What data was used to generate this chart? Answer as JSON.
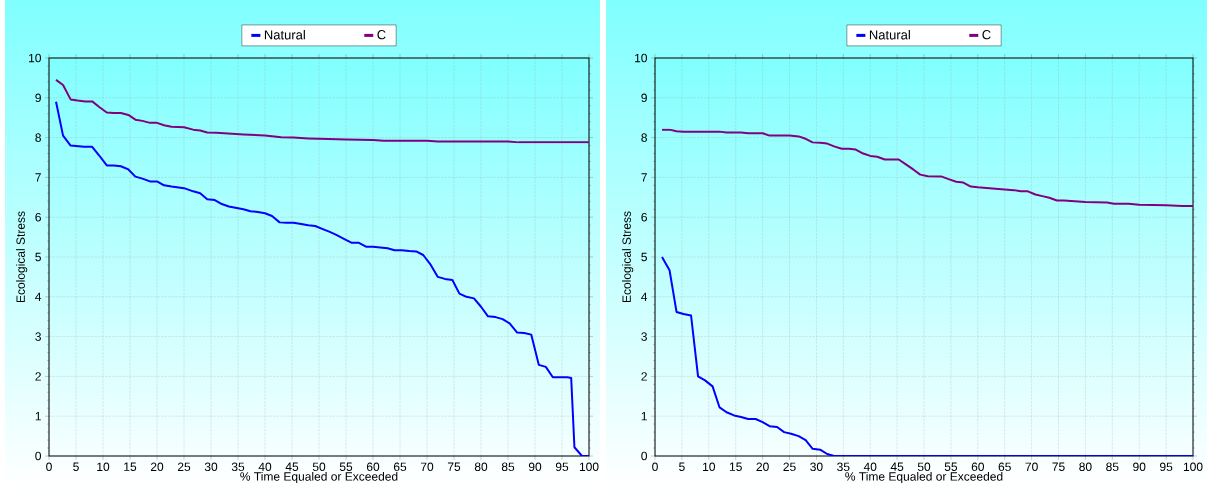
{
  "chart_data": [
    {
      "type": "line",
      "xlabel": "% Time Equaled or Exceeded",
      "ylabel": "Ecological Stress",
      "xlim": [
        0,
        100
      ],
      "ylim": [
        0,
        10
      ],
      "xticks": [
        0,
        5,
        10,
        15,
        20,
        25,
        30,
        35,
        40,
        45,
        50,
        55,
        60,
        65,
        70,
        75,
        80,
        85,
        90,
        95,
        100
      ],
      "yticks": [
        0,
        1,
        2,
        3,
        4,
        5,
        6,
        7,
        8,
        9,
        10
      ],
      "grid": true,
      "legend": "top",
      "series": [
        {
          "name": "Natural",
          "color": "#0000ff",
          "x": [
            1.3,
            2.6,
            4,
            6.5,
            8,
            9.3,
            10.7,
            12,
            13.3,
            14.7,
            16,
            17.3,
            18.7,
            20,
            21.3,
            22.7,
            25,
            26.7,
            28,
            29.3,
            30.7,
            32,
            33.3,
            36,
            37.3,
            38.7,
            40,
            41.3,
            42.7,
            44,
            45.3,
            46.7,
            48,
            49.3,
            50.7,
            52,
            53.3,
            54.7,
            56,
            57.3,
            58.7,
            60,
            62.7,
            64,
            65.3,
            66.7,
            68,
            69.3,
            70.7,
            72,
            73.3,
            74.7,
            76,
            77.3,
            78.7,
            80,
            81.3,
            82.7,
            84,
            85.3,
            86.7,
            88,
            89.3,
            90.7,
            92,
            93.3,
            96,
            96.7,
            97.3,
            98.7,
            100
          ],
          "values": [
            8.9,
            8.05,
            7.8,
            7.77,
            7.77,
            7.55,
            7.3,
            7.3,
            7.28,
            7.2,
            7.02,
            6.97,
            6.9,
            6.9,
            6.8,
            6.77,
            6.73,
            6.65,
            6.6,
            6.45,
            6.43,
            6.33,
            6.27,
            6.2,
            6.15,
            6.13,
            6.1,
            6.03,
            5.87,
            5.86,
            5.86,
            5.83,
            5.8,
            5.78,
            5.7,
            5.63,
            5.55,
            5.45,
            5.36,
            5.36,
            5.26,
            5.26,
            5.22,
            5.17,
            5.17,
            5.15,
            5.14,
            5.05,
            4.8,
            4.5,
            4.45,
            4.42,
            4.08,
            4.0,
            3.96,
            3.75,
            3.51,
            3.49,
            3.44,
            3.33,
            3.1,
            3.09,
            3.05,
            2.29,
            2.24,
            1.98,
            1.98,
            1.96,
            0.22,
            0,
            0
          ]
        },
        {
          "name": "C",
          "color": "#800080",
          "x": [
            1.3,
            2.6,
            4,
            5.3,
            6.7,
            8,
            9.3,
            10.7,
            12,
            13.3,
            14.7,
            16,
            17.3,
            18.7,
            20,
            21.3,
            22.7,
            25,
            26.7,
            28,
            29.3,
            31,
            36,
            40,
            43,
            45.3,
            48,
            50,
            55,
            60,
            62,
            70,
            72,
            85,
            87,
            100
          ],
          "values": [
            9.45,
            9.32,
            8.96,
            8.93,
            8.91,
            8.91,
            8.77,
            8.63,
            8.62,
            8.62,
            8.57,
            8.45,
            8.42,
            8.37,
            8.37,
            8.31,
            8.27,
            8.26,
            8.2,
            8.18,
            8.13,
            8.12,
            8.08,
            8.05,
            8.01,
            8.0,
            7.98,
            7.97,
            7.95,
            7.94,
            7.92,
            7.92,
            7.9,
            7.9,
            7.88,
            7.88
          ]
        }
      ]
    },
    {
      "type": "line",
      "xlabel": "% Time Equaled or Exceeded",
      "ylabel": "Ecological Stress",
      "xlim": [
        0,
        100
      ],
      "ylim": [
        0,
        10
      ],
      "xticks": [
        0,
        5,
        10,
        15,
        20,
        25,
        30,
        35,
        40,
        45,
        50,
        55,
        60,
        65,
        70,
        75,
        80,
        85,
        90,
        95,
        100
      ],
      "yticks": [
        0,
        1,
        2,
        3,
        4,
        5,
        6,
        7,
        8,
        9,
        10
      ],
      "grid": true,
      "legend": "top",
      "series": [
        {
          "name": "Natural",
          "color": "#0000ff",
          "x": [
            1.3,
            2.7,
            4,
            5.3,
            6.7,
            8,
            9.3,
            10.7,
            12,
            13.3,
            14.7,
            16,
            17.3,
            18.7,
            20,
            21.3,
            22.7,
            24,
            25.3,
            26.7,
            28,
            29.3,
            30.7,
            32,
            33.3,
            100
          ],
          "values": [
            5.0,
            4.67,
            3.62,
            3.57,
            3.53,
            2.0,
            1.9,
            1.75,
            1.22,
            1.1,
            1.02,
            0.98,
            0.93,
            0.93,
            0.85,
            0.75,
            0.73,
            0.6,
            0.56,
            0.5,
            0.4,
            0.18,
            0.16,
            0.05,
            0,
            0
          ]
        },
        {
          "name": "C",
          "color": "#800080",
          "x": [
            1.3,
            2.7,
            4,
            5.3,
            10,
            12,
            13.3,
            16,
            17.3,
            20,
            21.3,
            25,
            26.7,
            28,
            29.3,
            30.7,
            32,
            33.3,
            34.7,
            36,
            37.3,
            38.7,
            40,
            41.3,
            42.7,
            45.3,
            46.7,
            48,
            49.3,
            50.7,
            53.3,
            54.7,
            56,
            57.3,
            58.7,
            60,
            62.7,
            66.7,
            68,
            69.3,
            70.7,
            72,
            73.3,
            74.7,
            76,
            80,
            84,
            85.3,
            88,
            90,
            95,
            98,
            100
          ],
          "values": [
            8.2,
            8.2,
            8.16,
            8.15,
            8.15,
            8.15,
            8.13,
            8.13,
            8.11,
            8.11,
            8.05,
            8.05,
            8.03,
            7.97,
            7.88,
            7.87,
            7.85,
            7.78,
            7.72,
            7.72,
            7.7,
            7.6,
            7.54,
            7.52,
            7.45,
            7.45,
            7.32,
            7.2,
            7.07,
            7.03,
            7.02,
            6.95,
            6.89,
            6.87,
            6.77,
            6.75,
            6.72,
            6.68,
            6.65,
            6.65,
            6.57,
            6.53,
            6.49,
            6.42,
            6.42,
            6.38,
            6.37,
            6.34,
            6.34,
            6.31,
            6.3,
            6.28,
            6.28
          ]
        }
      ]
    }
  ]
}
